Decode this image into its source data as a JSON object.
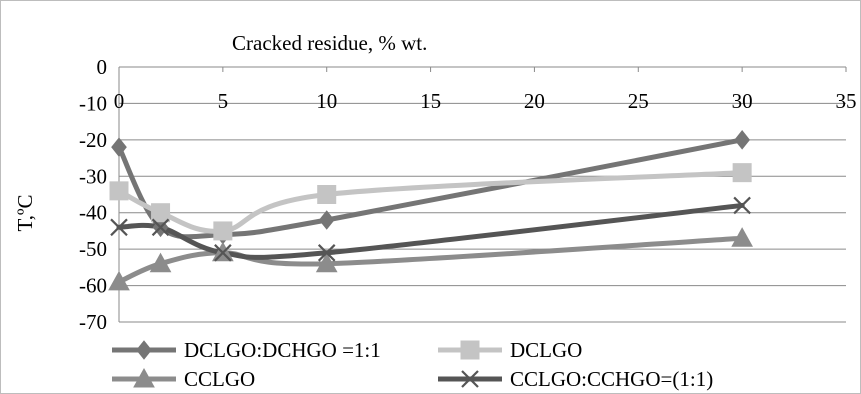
{
  "chart_data": {
    "type": "line",
    "title": "Cracked residue, % wt.",
    "xlabel": "",
    "ylabel": "T,ºC",
    "xlim": [
      0,
      35
    ],
    "ylim": [
      -70,
      0
    ],
    "x_ticks": [
      0,
      5,
      10,
      15,
      20,
      25,
      30,
      35
    ],
    "y_ticks": [
      0,
      -10,
      -20,
      -30,
      -40,
      -50,
      -60,
      -70
    ],
    "grid": "horizontal",
    "legend_position": "bottom",
    "series": [
      {
        "name": "DCLGO:DCHGO =1:1",
        "color": "#757575",
        "marker": "diamond",
        "points": [
          [
            0,
            -22
          ],
          [
            2,
            -44
          ],
          [
            5,
            -46
          ],
          [
            10,
            -42
          ],
          [
            30,
            -20
          ]
        ]
      },
      {
        "name": "DCLGO",
        "color": "#c4c4c4",
        "marker": "square",
        "points": [
          [
            0,
            -34
          ],
          [
            2,
            -40
          ],
          [
            5,
            -45
          ],
          [
            10,
            -35
          ],
          [
            30,
            -29
          ]
        ]
      },
      {
        "name": "CCLGO",
        "color": "#8c8c8c",
        "marker": "triangle",
        "points": [
          [
            0,
            -59
          ],
          [
            2,
            -54
          ],
          [
            5,
            -51
          ],
          [
            10,
            -54
          ],
          [
            30,
            -47
          ]
        ]
      },
      {
        "name": "CCLGO:CCHGO=(1:1)",
        "color": "#555555",
        "marker": "x",
        "points": [
          [
            0,
            -44
          ],
          [
            2,
            -44
          ],
          [
            5,
            -51
          ],
          [
            10,
            -51
          ],
          [
            30,
            -38
          ]
        ]
      }
    ]
  }
}
